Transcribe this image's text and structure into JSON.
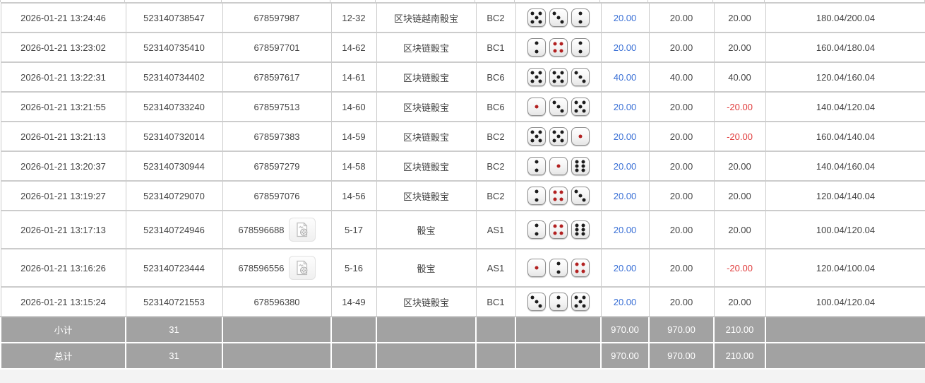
{
  "colors": {
    "link_blue": "#3a70d6",
    "loss_red": "#e03c3c",
    "summary_bg": "#a2a2a2",
    "grid_border": "#cccccc"
  },
  "icons": {
    "video": "video-record-icon"
  },
  "table": {
    "rows": [
      {
        "time": "2026-01-21 13:24:46",
        "order_no": "523140738547",
        "round_no": "678597987",
        "has_video": false,
        "table_no": "12-32",
        "game_name": "区块链越南骰宝",
        "game_code": "BC2",
        "dice": [
          5,
          3,
          2
        ],
        "bet": "20.00",
        "valid": "20.00",
        "winloss": "20.00",
        "ratio": "180.04/200.04"
      },
      {
        "time": "2026-01-21 13:23:02",
        "order_no": "523140735410",
        "round_no": "678597701",
        "has_video": false,
        "table_no": "14-62",
        "game_name": "区块链骰宝",
        "game_code": "BC1",
        "dice": [
          2,
          4,
          2
        ],
        "bet": "20.00",
        "valid": "20.00",
        "winloss": "20.00",
        "ratio": "160.04/180.04"
      },
      {
        "time": "2026-01-21 13:22:31",
        "order_no": "523140734402",
        "round_no": "678597617",
        "has_video": false,
        "table_no": "14-61",
        "game_name": "区块链骰宝",
        "game_code": "BC6",
        "dice": [
          5,
          5,
          3
        ],
        "bet": "40.00",
        "valid": "40.00",
        "winloss": "40.00",
        "ratio": "120.04/160.04"
      },
      {
        "time": "2026-01-21 13:21:55",
        "order_no": "523140733240",
        "round_no": "678597513",
        "has_video": false,
        "table_no": "14-60",
        "game_name": "区块链骰宝",
        "game_code": "BC6",
        "dice": [
          1,
          3,
          5
        ],
        "bet": "20.00",
        "valid": "20.00",
        "winloss": "-20.00",
        "ratio": "140.04/120.04"
      },
      {
        "time": "2026-01-21 13:21:13",
        "order_no": "523140732014",
        "round_no": "678597383",
        "has_video": false,
        "table_no": "14-59",
        "game_name": "区块链骰宝",
        "game_code": "BC2",
        "dice": [
          5,
          5,
          1
        ],
        "bet": "20.00",
        "valid": "20.00",
        "winloss": "-20.00",
        "ratio": "160.04/140.04"
      },
      {
        "time": "2026-01-21 13:20:37",
        "order_no": "523140730944",
        "round_no": "678597279",
        "has_video": false,
        "table_no": "14-58",
        "game_name": "区块链骰宝",
        "game_code": "BC2",
        "dice": [
          2,
          1,
          6
        ],
        "bet": "20.00",
        "valid": "20.00",
        "winloss": "20.00",
        "ratio": "140.04/160.04"
      },
      {
        "time": "2026-01-21 13:19:27",
        "order_no": "523140729070",
        "round_no": "678597076",
        "has_video": false,
        "table_no": "14-56",
        "game_name": "区块链骰宝",
        "game_code": "BC2",
        "dice": [
          2,
          4,
          3
        ],
        "bet": "20.00",
        "valid": "20.00",
        "winloss": "20.00",
        "ratio": "120.04/140.04"
      },
      {
        "time": "2026-01-21 13:17:13",
        "order_no": "523140724946",
        "round_no": "678596688",
        "has_video": true,
        "table_no": "5-17",
        "game_name": "骰宝",
        "game_code": "AS1",
        "dice": [
          2,
          4,
          6
        ],
        "bet": "20.00",
        "valid": "20.00",
        "winloss": "20.00",
        "ratio": "100.04/120.04"
      },
      {
        "time": "2026-01-21 13:16:26",
        "order_no": "523140723444",
        "round_no": "678596556",
        "has_video": true,
        "table_no": "5-16",
        "game_name": "骰宝",
        "game_code": "AS1",
        "dice": [
          1,
          2,
          4
        ],
        "bet": "20.00",
        "valid": "20.00",
        "winloss": "-20.00",
        "ratio": "120.04/100.04"
      },
      {
        "time": "2026-01-21 13:15:24",
        "order_no": "523140721553",
        "round_no": "678596380",
        "has_video": false,
        "table_no": "14-49",
        "game_name": "区块链骰宝",
        "game_code": "BC1",
        "dice": [
          3,
          2,
          5
        ],
        "bet": "20.00",
        "valid": "20.00",
        "winloss": "20.00",
        "ratio": "100.04/120.04"
      }
    ],
    "subtotal": {
      "label": "小计",
      "count": "31",
      "bet": "970.00",
      "valid": "970.00",
      "winloss": "210.00"
    },
    "total": {
      "label": "总计",
      "count": "31",
      "bet": "970.00",
      "valid": "970.00",
      "winloss": "210.00"
    }
  }
}
